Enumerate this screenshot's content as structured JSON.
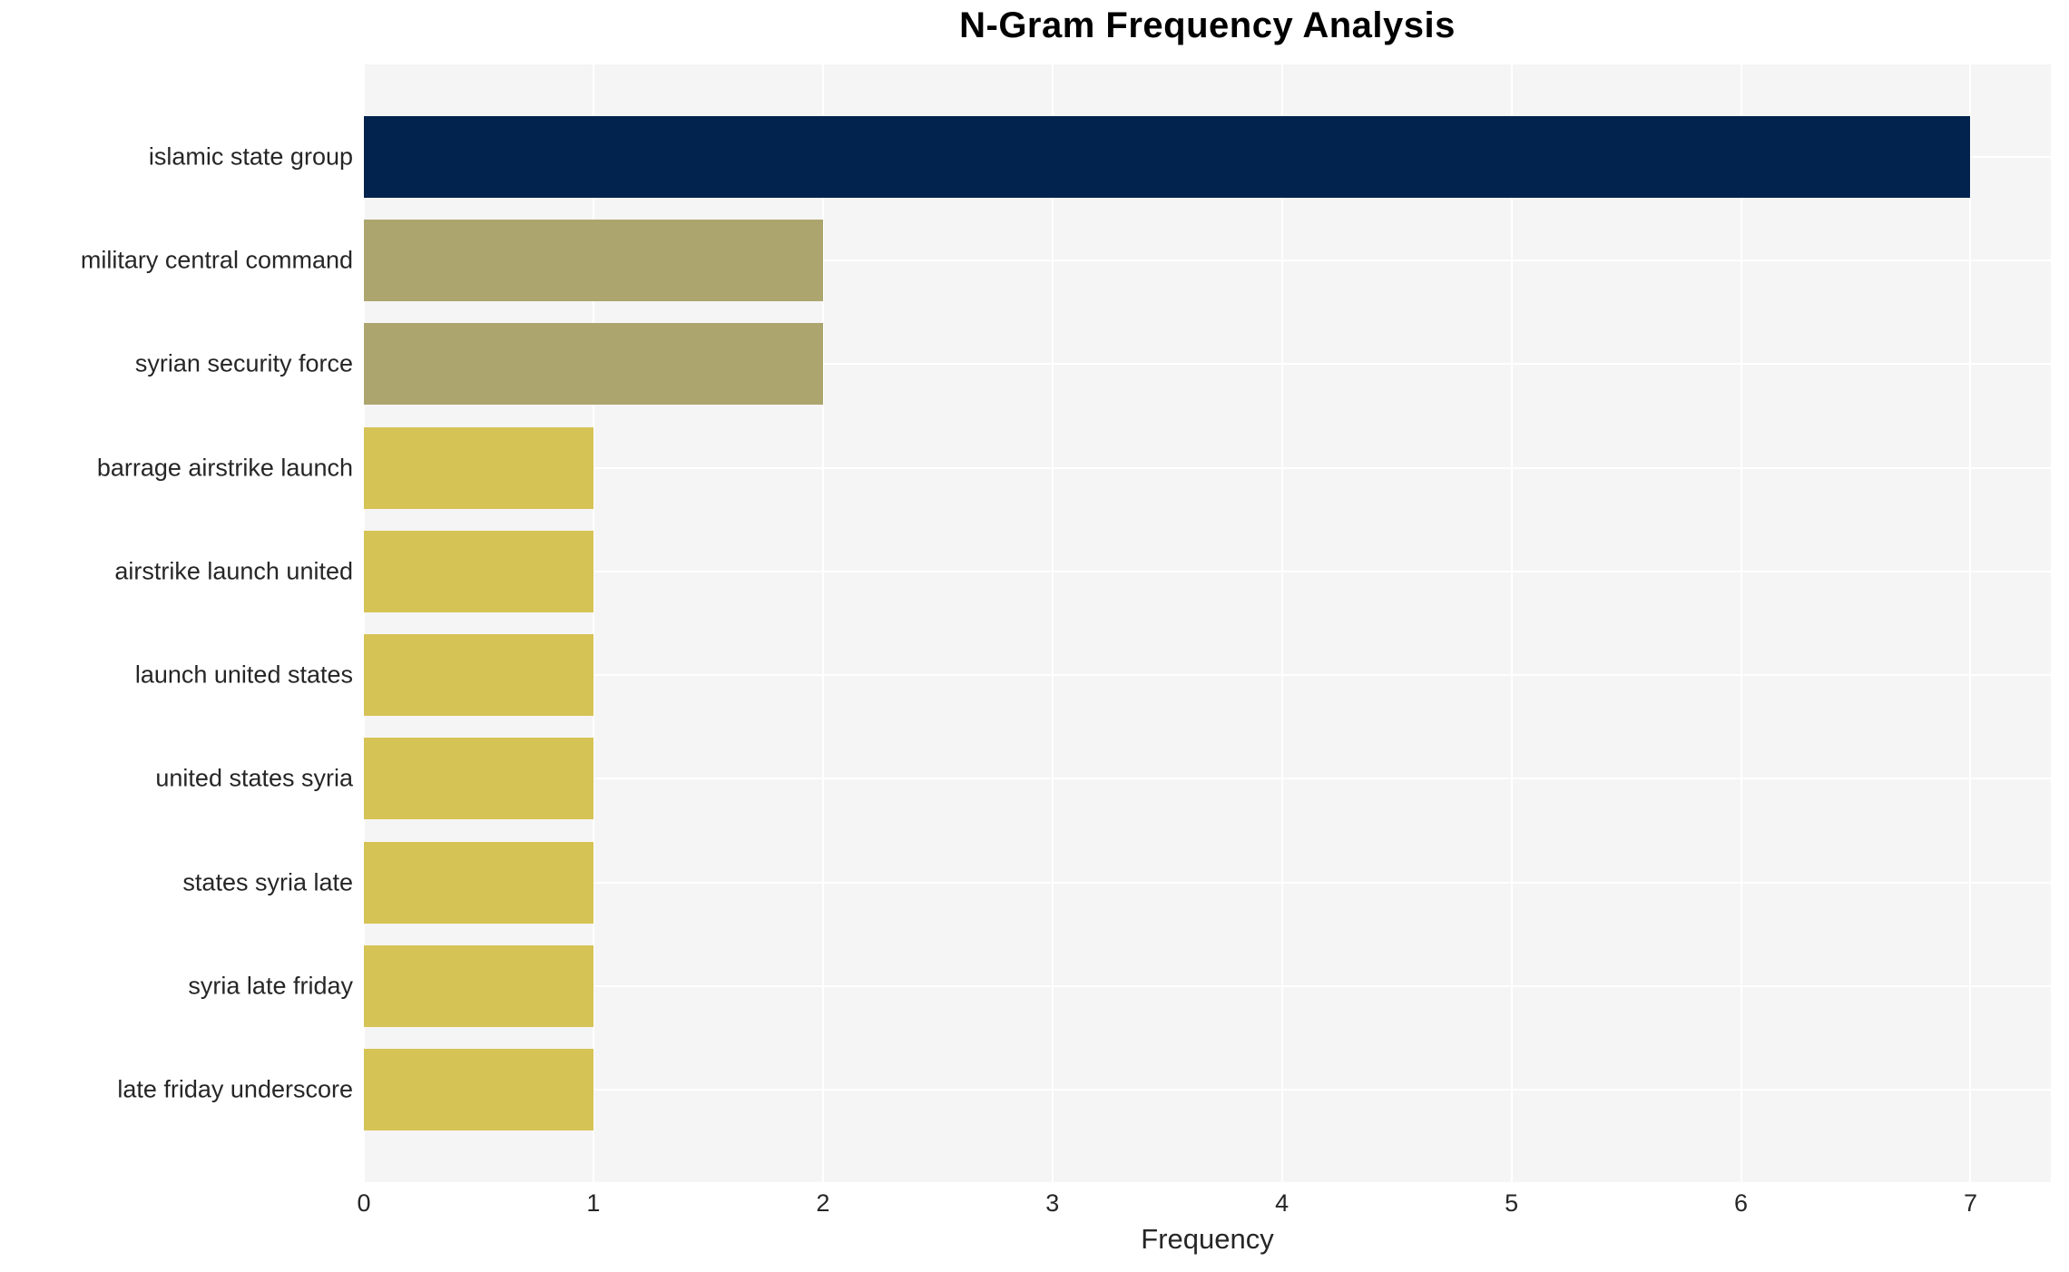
{
  "chart_data": {
    "type": "bar",
    "orientation": "horizontal",
    "title": "N-Gram Frequency Analysis",
    "xlabel": "Frequency",
    "ylabel": "",
    "categories": [
      "islamic state group",
      "military central command",
      "syrian security force",
      "barrage airstrike launch",
      "airstrike launch united",
      "launch united states",
      "united states syria",
      "states syria late",
      "syria late friday",
      "late friday underscore"
    ],
    "values": [
      7,
      2,
      2,
      1,
      1,
      1,
      1,
      1,
      1,
      1
    ],
    "bar_colors": [
      "#02234d",
      "#ada56e",
      "#ada56e",
      "#d6c355",
      "#d6c355",
      "#d6c355",
      "#d6c355",
      "#d6c355",
      "#d6c355",
      "#d6c355"
    ],
    "xticks": [
      "0",
      "1",
      "2",
      "3",
      "4",
      "5",
      "6",
      "7"
    ],
    "xlim": [
      0,
      7.35
    ],
    "grid": true,
    "legend_position": "none",
    "plot_background": "#f5f5f5",
    "gridline_color": "#ffffff",
    "tick_text_color": "#262626",
    "title_color": "#000000"
  }
}
